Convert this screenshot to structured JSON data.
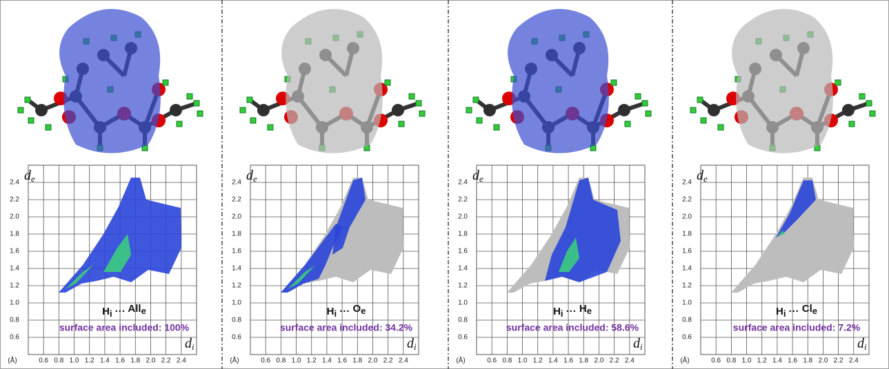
{
  "chart_data": [
    {
      "type": "fingerprint",
      "surface_color": "#3a4fd0",
      "cloud_color": "#2a45d8",
      "background_cloud": false,
      "y_label": [
        "d",
        "e"
      ],
      "x_label": [
        "d",
        "i"
      ],
      "unit": "(Å)",
      "contact": [
        "H",
        "i",
        " ··· ",
        "All",
        "e"
      ],
      "area_label": "surface area included: 100%",
      "xlim": [
        0.4,
        2.6
      ],
      "ylim": [
        0.4,
        2.6
      ],
      "grid": true,
      "xticks": [
        0.6,
        0.8,
        {
          "value": 1,
          "label": "1.0"
        },
        1.2,
        1.4,
        1.6,
        1.8,
        {
          "value": 2,
          "label": "2.0"
        },
        2.2,
        2.4
      ],
      "yticks": [
        0.6,
        0.8,
        {
          "value": 1,
          "label": "1.0"
        },
        1.2,
        1.4,
        1.6,
        1.8,
        {
          "value": 2,
          "label": "2.0"
        },
        2.2,
        2.4
      ]
    },
    {
      "type": "fingerprint",
      "surface_color": "#b8b8b8",
      "cloud_color": "#2a45d8",
      "background_cloud": true,
      "y_label": [
        "d",
        "e"
      ],
      "x_label": [
        "d",
        "i"
      ],
      "unit": "(Å)",
      "contact": [
        "H",
        "i",
        " ··· ",
        "O",
        "e"
      ],
      "area_label": "surface area included: 34.2%",
      "xlim": [
        0.4,
        2.6
      ],
      "ylim": [
        0.4,
        2.6
      ],
      "grid": true,
      "xticks": [
        0.6,
        0.8,
        {
          "value": 1,
          "label": "1.0"
        },
        1.2,
        1.4,
        1.6,
        1.8,
        {
          "value": 2,
          "label": "2.0"
        },
        2.2,
        2.4
      ],
      "yticks": [
        0.6,
        0.8,
        {
          "value": 1,
          "label": "1.0"
        },
        1.2,
        1.4,
        1.6,
        1.8,
        {
          "value": 2,
          "label": "2.0"
        },
        2.2,
        2.4
      ]
    },
    {
      "type": "fingerprint",
      "surface_color": "#3a4fd0",
      "cloud_color": "#2a45d8",
      "background_cloud": true,
      "y_label": [
        "d",
        "e"
      ],
      "x_label": [
        "d",
        "i"
      ],
      "unit": "(Å)",
      "contact": [
        "H",
        "i",
        " ··· ",
        "H",
        "e"
      ],
      "area_label": "surface area included: 58.6%",
      "xlim": [
        0.4,
        2.6
      ],
      "ylim": [
        0.4,
        2.6
      ],
      "grid": true,
      "xticks": [
        0.6,
        0.8,
        {
          "value": 1,
          "label": "1.0"
        },
        1.2,
        1.4,
        1.6,
        1.8,
        {
          "value": 2,
          "label": "2.0"
        },
        2.2,
        2.4
      ],
      "yticks": [
        0.6,
        0.8,
        {
          "value": 1,
          "label": "1.0"
        },
        1.2,
        1.4,
        1.6,
        1.8,
        {
          "value": 2,
          "label": "2.0"
        },
        2.2,
        2.4
      ]
    },
    {
      "type": "fingerprint",
      "surface_color": "#b8b8b8",
      "cloud_color": "#2a45d8",
      "background_cloud": true,
      "y_label": [
        "d",
        "e"
      ],
      "x_label": [
        "d",
        "i"
      ],
      "unit": "(Å)",
      "contact": [
        "H",
        "i",
        " ··· ",
        "Cl",
        "e"
      ],
      "area_label": "surface area included: 7.2%",
      "xlim": [
        0.4,
        2.6
      ],
      "ylim": [
        0.4,
        2.6
      ],
      "grid": true,
      "xticks": [
        0.6,
        0.8,
        {
          "value": 1,
          "label": "1.0"
        },
        1.2,
        1.4,
        1.6,
        1.8,
        {
          "value": 2,
          "label": "2.0"
        },
        2.2,
        2.4
      ],
      "yticks": [
        0.6,
        0.8,
        {
          "value": 1,
          "label": "1.0"
        },
        1.2,
        1.4,
        1.6,
        1.8,
        {
          "value": 2,
          "label": "2.0"
        },
        2.2,
        2.4
      ]
    }
  ]
}
